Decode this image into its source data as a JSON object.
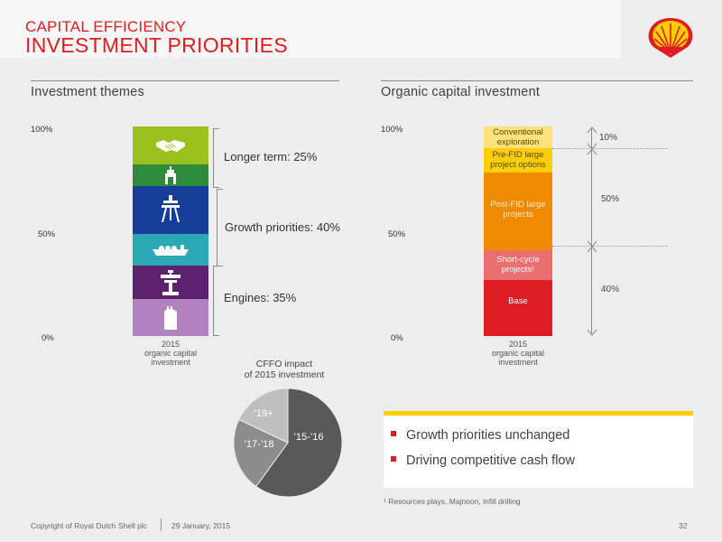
{
  "header": {
    "small_title": "CAPITAL EFFICIENCY",
    "big_title": "INVESTMENT PRIORITIES"
  },
  "left": {
    "section_title": "Investment themes",
    "axis": {
      "top": "100%",
      "mid": "50%",
      "bottom": "0%"
    },
    "segments": [
      {
        "icon": "handshake-icon",
        "color": "#9bc11f"
      },
      {
        "icon": "drilling-rig-icon",
        "color": "#2e8b3a"
      },
      {
        "icon": "offshore-platform-icon",
        "color": "#173f9a"
      },
      {
        "icon": "lng-tanker-icon",
        "color": "#2aa9b5"
      },
      {
        "icon": "refinery-icon",
        "color": "#5e2170"
      },
      {
        "icon": "fuel-can-icon",
        "color": "#b181c0"
      }
    ],
    "brackets": [
      {
        "label": "Longer term: 25%"
      },
      {
        "label": "Growth priorities: 40%"
      },
      {
        "label": "Engines: 35%"
      }
    ],
    "x_label_line1": "2015",
    "x_label_line2": "organic capital",
    "x_label_line3": "investment"
  },
  "pie": {
    "title_line1": "CFFO impact",
    "title_line2": "of 2015 investment",
    "slices": [
      {
        "label": "’15-’16",
        "value": 60,
        "color": "#595959"
      },
      {
        "label": "’17-’18",
        "value": 22,
        "color": "#8c8c8c"
      },
      {
        "label": "’19+",
        "value": 18,
        "color": "#bfbfbf"
      }
    ]
  },
  "right": {
    "section_title": "Organic capital investment",
    "axis": {
      "top": "100%",
      "mid": "50%",
      "bottom": "0%"
    },
    "segments": [
      {
        "label_line1": "Conventional",
        "label_line2": "exploration",
        "color": "#fde27a",
        "text_color": "#5a4a00"
      },
      {
        "label_line1": "Pre-FID large",
        "label_line2": "project options",
        "color": "#fbce07",
        "text_color": "#5a4a00"
      },
      {
        "label_line1": "Post-FID large",
        "label_line2": "projects",
        "color": "#ee8b00",
        "text_color": "#ffe9c8"
      },
      {
        "label_line1": "Short-cycle",
        "label_line2": "projects¹",
        "color": "#eb6f6f",
        "text_color": "#ffffff"
      },
      {
        "label_line1": "Base",
        "label_line2": "",
        "color": "#dd1d21",
        "text_color": "#ffffff"
      }
    ],
    "pcts": {
      "top": "10%",
      "mid": "50%",
      "bottom": "40%"
    },
    "x_label_line1": "2015",
    "x_label_line2": "organic capital",
    "x_label_line3": "investment"
  },
  "bullets": [
    "Growth priorities unchanged",
    "Driving competitive cash flow"
  ],
  "footnote": "¹ Resources plays, Majnoon, infill drilling",
  "footer": {
    "copyright": "Copyright of Royal Dutch Shell plc",
    "date": "29 January, 2015",
    "page": "32"
  }
}
